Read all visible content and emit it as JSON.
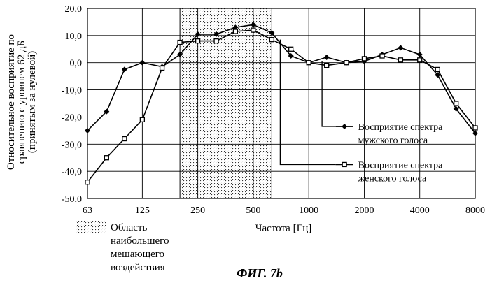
{
  "figure": {
    "caption": "ФИГ. 7b",
    "shaded_region_label": [
      "Область",
      "наибольшего",
      "мешающего",
      "воздействия"
    ]
  },
  "chart_data": {
    "type": "line",
    "title": "",
    "xlabel": "Частота [Гц]",
    "ylabel": [
      "Относительное восприятие по",
      "сравнению с уровнем 62 дБ",
      "(принятым за нулевой)"
    ],
    "x_scale": "log",
    "x_ticks": [
      63,
      125,
      250,
      500,
      1000,
      2000,
      4000,
      8000
    ],
    "x_tick_labels": [
      "63",
      "125",
      "250",
      "500",
      "1000",
      "2000",
      "4000",
      "8000"
    ],
    "xlim": [
      63,
      8000
    ],
    "ylim": [
      -50,
      20
    ],
    "y_ticks": [
      -50,
      -40,
      -30,
      -20,
      -10,
      0,
      10,
      20
    ],
    "y_tick_labels": [
      "-50,0",
      "-40,0",
      "-30,0",
      "-20,0",
      "-10,0",
      "0,0",
      "10,0",
      "20,0"
    ],
    "grid": true,
    "shaded_region": {
      "x_from": 200,
      "x_to": 630
    },
    "series": [
      {
        "name": "Восприятие спектра мужского голоса",
        "legend_lines": [
          "Восприятие спектра",
          "мужского голоса"
        ],
        "marker": "diamond",
        "x": [
          63,
          80,
          100,
          125,
          160,
          200,
          250,
          315,
          400,
          500,
          630,
          800,
          1000,
          1250,
          1600,
          2000,
          2500,
          3150,
          4000,
          5000,
          6300,
          8000
        ],
        "values": [
          -25,
          -18,
          -2.5,
          0,
          -1.5,
          3,
          10.5,
          10.5,
          13,
          14,
          11,
          2.5,
          0,
          2,
          0,
          0.5,
          3,
          5.5,
          3,
          -4.5,
          -17,
          -26
        ]
      },
      {
        "name": "Восприятие спектра женского голоса",
        "legend_lines": [
          "Восприятие спектра",
          "женского голоса"
        ],
        "marker": "square",
        "x": [
          63,
          80,
          100,
          125,
          160,
          200,
          250,
          315,
          400,
          500,
          630,
          800,
          1000,
          1250,
          1600,
          2000,
          2500,
          3150,
          4000,
          5000,
          6300,
          8000
        ],
        "values": [
          -44,
          -35,
          -28,
          -21,
          -2,
          7.5,
          8,
          8,
          11.5,
          12,
          8.5,
          5,
          0,
          -1,
          0,
          1.5,
          2.5,
          1,
          1,
          -2.5,
          -15,
          -24
        ]
      }
    ]
  }
}
